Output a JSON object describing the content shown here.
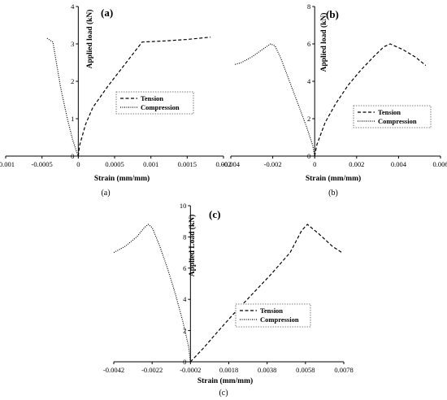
{
  "chart_data": [
    {
      "type": "line",
      "panel_label": "(a)",
      "caption": "(a)",
      "xlabel": "Strain (mm/mm)",
      "ylabel": "Applied load (kN)",
      "xlim": [
        -0.001,
        0.002
      ],
      "ylim": [
        0,
        4
      ],
      "xticks": [
        "-0.001",
        "-0.0005",
        "0",
        "0.0005",
        "0.001",
        "0.0015",
        "0.002"
      ],
      "xtick_values": [
        -0.001,
        -0.0005,
        0,
        0.0005,
        0.001,
        0.0015,
        0.002
      ],
      "yticks": [
        "0",
        "1",
        "2",
        "3",
        "4"
      ],
      "ytick_values": [
        0,
        1,
        2,
        3,
        4
      ],
      "legend_placement": "center-right",
      "series": [
        {
          "name": "Tension",
          "style": "dashed",
          "x": [
            0,
            2e-05,
            0.0001,
            0.0002,
            0.0004,
            0.0006,
            0.00088,
            0.0012,
            0.0015,
            0.00182
          ],
          "y": [
            0,
            0.3,
            0.85,
            1.3,
            1.85,
            2.35,
            3.05,
            3.08,
            3.12,
            3.18
          ]
        },
        {
          "name": "Compression",
          "style": "dotted",
          "x": [
            -0.00043,
            -0.00035,
            -0.00031,
            -0.00024,
            -0.00015,
            -8e-05,
            -3e-05,
            0
          ],
          "y": [
            3.15,
            3.05,
            2.6,
            1.8,
            1.0,
            0.45,
            0.15,
            0
          ]
        }
      ]
    },
    {
      "type": "line",
      "panel_label": "(b)",
      "caption": "(b)",
      "xlabel": "Strain (mm/mm)",
      "ylabel": "Applied load (kN)",
      "xlim": [
        -0.004,
        0.006
      ],
      "ylim": [
        0,
        8
      ],
      "xticks": [
        "-0.004",
        "-0.002",
        "0",
        "0.002",
        "0.004",
        "0.006"
      ],
      "xtick_values": [
        -0.004,
        -0.002,
        0,
        0.002,
        0.004,
        0.006
      ],
      "yticks": [
        "0",
        "2",
        "4",
        "6",
        "8"
      ],
      "ytick_values": [
        0,
        2,
        4,
        6,
        8
      ],
      "legend_placement": "center-right",
      "series": [
        {
          "name": "Tension",
          "style": "dashed",
          "x": [
            0,
            0.0001,
            0.0005,
            0.001,
            0.0016,
            0.0022,
            0.0028,
            0.0033,
            0.0036,
            0.0042,
            0.0048,
            0.0053
          ],
          "y": [
            0,
            0.6,
            1.8,
            2.8,
            3.8,
            4.6,
            5.3,
            5.85,
            6.0,
            5.7,
            5.3,
            4.85
          ]
        },
        {
          "name": "Compression",
          "style": "dotted",
          "x": [
            -0.0038,
            -0.0035,
            -0.003,
            -0.0025,
            -0.0021,
            -0.0019,
            -0.0016,
            -0.0012,
            -0.0008,
            -0.0004,
            -0.0001,
            0
          ],
          "y": [
            4.9,
            5.0,
            5.3,
            5.7,
            6.0,
            5.9,
            5.2,
            4.0,
            2.8,
            1.6,
            0.6,
            0
          ]
        }
      ]
    },
    {
      "type": "line",
      "panel_label": "(c)",
      "caption": "(c)",
      "xlabel": "Strain (mm/mm)",
      "ylabel": "Applied Load (kN)",
      "xlim": [
        -0.0042,
        0.0078
      ],
      "ylim": [
        0,
        10
      ],
      "xticks": [
        "-0.0042",
        "-0.0022",
        "-0.0002",
        "0.0018",
        "0.0038",
        "0.0058",
        "0.0078"
      ],
      "xtick_values": [
        -0.0042,
        -0.0022,
        -0.0002,
        0.0018,
        0.0038,
        0.0058,
        0.0078
      ],
      "yticks": [
        "0",
        "2",
        "4",
        "6",
        "8",
        "10"
      ],
      "ytick_values": [
        0,
        2,
        4,
        6,
        8,
        10
      ],
      "legend_placement": "bottom-right",
      "series": [
        {
          "name": "Tension",
          "style": "dashed",
          "x": [
            -0.0002,
            0.0005,
            0.0012,
            0.002,
            0.003,
            0.004,
            0.005,
            0.0056,
            0.0059,
            0.0065,
            0.0072,
            0.0077
          ],
          "y": [
            0,
            0.9,
            1.9,
            3.0,
            4.3,
            5.6,
            7.0,
            8.4,
            8.8,
            8.2,
            7.4,
            7.0
          ]
        },
        {
          "name": "Compression",
          "style": "dotted",
          "x": [
            -0.0042,
            -0.0036,
            -0.003,
            -0.0026,
            -0.0024,
            -0.0022,
            -0.0018,
            -0.0014,
            -0.001,
            -0.0006,
            -0.0003,
            -0.0002
          ],
          "y": [
            7.0,
            7.4,
            8.0,
            8.6,
            8.8,
            8.6,
            7.4,
            6.0,
            4.4,
            2.6,
            1.0,
            0
          ]
        }
      ]
    }
  ]
}
